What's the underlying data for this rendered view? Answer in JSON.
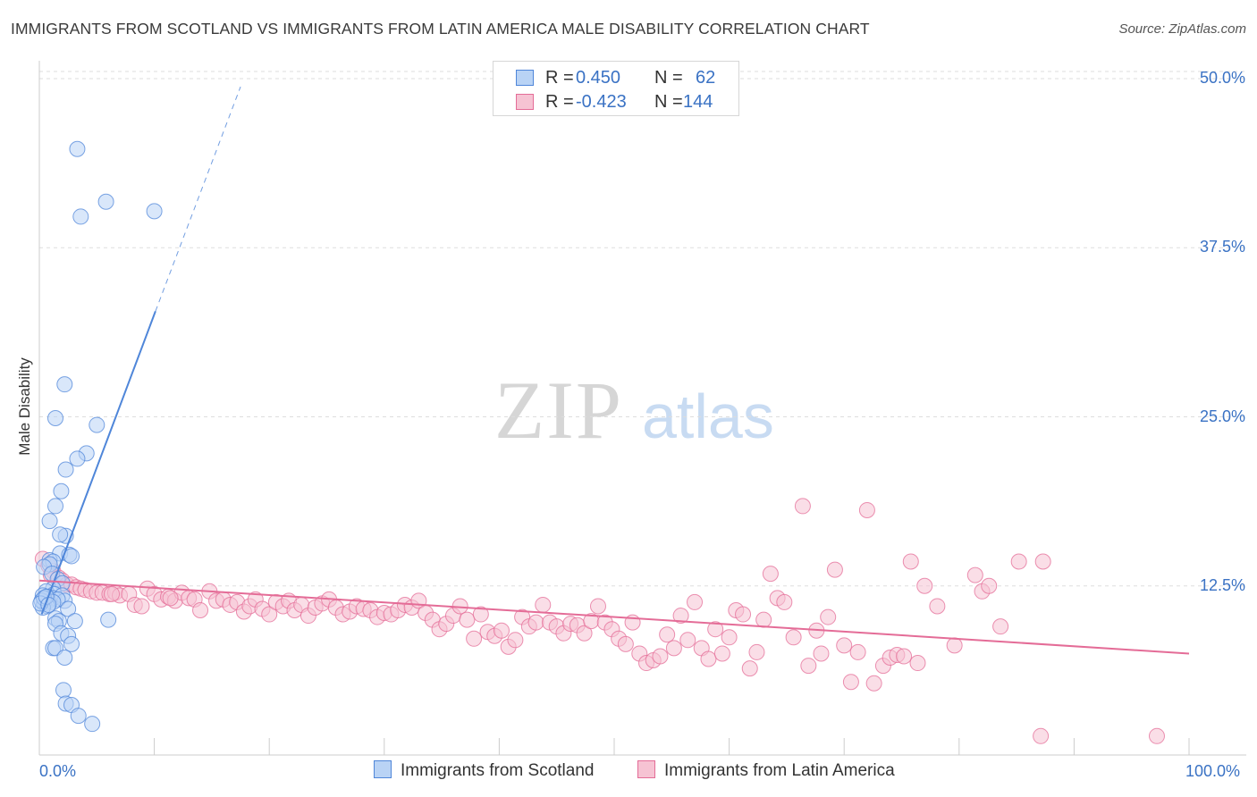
{
  "title": "IMMIGRANTS FROM SCOTLAND VS IMMIGRANTS FROM LATIN AMERICA MALE DISABILITY CORRELATION CHART",
  "source": "Source: ZipAtlas.com",
  "watermark": {
    "zip": "ZIP",
    "atlas": "atlas"
  },
  "colors": {
    "blue": "#4f86d9",
    "blue_fill": "#b9d3f5",
    "pink": "#e46c97",
    "pink_fill": "#f6c3d3",
    "tick_text": "#3a72c4",
    "grid": "#dddddd"
  },
  "legend_top": {
    "rows": [
      {
        "r_label": "R =",
        "r_value": "0.450",
        "n_label": "N =",
        "n_value": "62",
        "color": "blue"
      },
      {
        "r_label": "R =",
        "r_value": "-0.423",
        "n_label": "N =",
        "n_value": "144",
        "color": "pink"
      }
    ]
  },
  "legend_bottom": {
    "items": [
      {
        "label": "Immigrants from Scotland",
        "color": "blue"
      },
      {
        "label": "Immigrants from Latin America",
        "color": "pink"
      }
    ]
  },
  "chart_data": {
    "type": "scatter",
    "title": "IMMIGRANTS FROM SCOTLAND VS IMMIGRANTS FROM LATIN AMERICA MALE DISABILITY CORRELATION CHART",
    "xlabel": "",
    "ylabel": "Male Disability",
    "xlim": [
      0,
      100
    ],
    "ylim": [
      0,
      50
    ],
    "x_tick_labels": [
      "0.0%",
      "100.0%"
    ],
    "y_ticks": [
      12.5,
      25.0,
      37.5,
      50.0
    ],
    "y_tick_labels": [
      "12.5%",
      "25.0%",
      "37.5%",
      "50.0%"
    ],
    "grid": "horizontal dashed",
    "legend_position": "top-center and bottom",
    "series": [
      {
        "name": "Immigrants from Scotland",
        "color": "blue",
        "R": 0.45,
        "N": 62,
        "trend": {
          "x0": 0.2,
          "y0": 10.4,
          "x1": 10.1,
          "y1": 32.8,
          "dashed_to_x": 17.5,
          "dashed_to_y": 49.4
        },
        "points": [
          [
            3.3,
            44.8
          ],
          [
            5.8,
            40.9
          ],
          [
            3.6,
            39.8
          ],
          [
            10.0,
            40.2
          ],
          [
            2.2,
            27.4
          ],
          [
            1.4,
            24.9
          ],
          [
            5.0,
            24.4
          ],
          [
            4.1,
            22.3
          ],
          [
            3.3,
            21.9
          ],
          [
            2.3,
            21.1
          ],
          [
            1.9,
            19.5
          ],
          [
            1.4,
            18.4
          ],
          [
            0.9,
            17.3
          ],
          [
            2.3,
            16.2
          ],
          [
            1.8,
            16.3
          ],
          [
            1.8,
            14.9
          ],
          [
            2.6,
            14.8
          ],
          [
            2.8,
            14.7
          ],
          [
            0.9,
            14.4
          ],
          [
            1.2,
            14.3
          ],
          [
            0.9,
            14.1
          ],
          [
            0.4,
            13.9
          ],
          [
            1.1,
            13.4
          ],
          [
            1.6,
            13.0
          ],
          [
            2.0,
            12.7
          ],
          [
            1.2,
            12.3
          ],
          [
            0.6,
            12.1
          ],
          [
            1.3,
            11.9
          ],
          [
            0.7,
            11.7
          ],
          [
            1.2,
            11.6
          ],
          [
            0.5,
            11.5
          ],
          [
            0.8,
            11.4
          ],
          [
            2.0,
            11.8
          ],
          [
            2.2,
            11.4
          ],
          [
            0.4,
            11.2
          ],
          [
            1.6,
            11.5
          ],
          [
            1.2,
            11.3
          ],
          [
            0.7,
            11.0
          ],
          [
            2.5,
            10.8
          ],
          [
            0.3,
            10.9
          ],
          [
            1.4,
            10.1
          ],
          [
            1.7,
            9.9
          ],
          [
            1.4,
            9.7
          ],
          [
            3.1,
            9.9
          ],
          [
            6.0,
            10.0
          ],
          [
            1.9,
            9.0
          ],
          [
            2.5,
            8.8
          ],
          [
            2.8,
            8.2
          ],
          [
            1.2,
            7.9
          ],
          [
            1.4,
            7.9
          ],
          [
            2.2,
            7.2
          ],
          [
            2.1,
            4.8
          ],
          [
            2.3,
            3.8
          ],
          [
            2.8,
            3.7
          ],
          [
            3.4,
            2.9
          ],
          [
            4.6,
            2.3
          ],
          [
            0.3,
            11.8
          ],
          [
            0.2,
            11.4
          ],
          [
            0.4,
            11.6
          ],
          [
            0.1,
            11.2
          ],
          [
            0.6,
            11.7
          ],
          [
            0.8,
            11.1
          ]
        ]
      },
      {
        "name": "Immigrants from Latin America",
        "color": "pink",
        "R": -0.423,
        "N": 144,
        "trend": {
          "x0": 0.0,
          "y0": 12.9,
          "x1": 100.0,
          "y1": 7.5
        },
        "points": [
          [
            0.3,
            14.5
          ],
          [
            0.8,
            14.0
          ],
          [
            1.2,
            13.6
          ],
          [
            1.0,
            13.3
          ],
          [
            1.7,
            13.1
          ],
          [
            2.0,
            12.9
          ],
          [
            2.4,
            12.6
          ],
          [
            2.8,
            12.6
          ],
          [
            3.2,
            12.4
          ],
          [
            3.6,
            12.3
          ],
          [
            4.0,
            12.2
          ],
          [
            4.5,
            12.1
          ],
          [
            5.0,
            12.0
          ],
          [
            5.5,
            12.0
          ],
          [
            6.1,
            11.9
          ],
          [
            6.6,
            12.0
          ],
          [
            7.0,
            11.8
          ],
          [
            7.8,
            11.9
          ],
          [
            8.3,
            11.1
          ],
          [
            8.9,
            11.0
          ],
          [
            9.4,
            12.3
          ],
          [
            10.0,
            11.9
          ],
          [
            10.6,
            11.5
          ],
          [
            11.2,
            11.7
          ],
          [
            11.8,
            11.4
          ],
          [
            12.4,
            12.0
          ],
          [
            13.0,
            11.6
          ],
          [
            13.5,
            11.5
          ],
          [
            14.0,
            10.7
          ],
          [
            14.8,
            12.1
          ],
          [
            15.4,
            11.4
          ],
          [
            16.0,
            11.5
          ],
          [
            16.6,
            11.1
          ],
          [
            17.2,
            11.3
          ],
          [
            17.8,
            10.6
          ],
          [
            18.3,
            11.0
          ],
          [
            18.8,
            11.5
          ],
          [
            19.4,
            10.8
          ],
          [
            20.0,
            10.4
          ],
          [
            20.6,
            11.3
          ],
          [
            21.2,
            11.0
          ],
          [
            21.7,
            11.4
          ],
          [
            22.2,
            10.7
          ],
          [
            22.8,
            11.1
          ],
          [
            23.4,
            10.3
          ],
          [
            24.0,
            10.9
          ],
          [
            24.6,
            11.2
          ],
          [
            25.2,
            11.5
          ],
          [
            25.8,
            10.9
          ],
          [
            26.4,
            10.4
          ],
          [
            27.0,
            10.6
          ],
          [
            27.6,
            11.0
          ],
          [
            28.2,
            10.8
          ],
          [
            28.8,
            10.7
          ],
          [
            29.4,
            10.2
          ],
          [
            30.0,
            10.5
          ],
          [
            30.6,
            10.4
          ],
          [
            31.2,
            10.7
          ],
          [
            31.8,
            11.1
          ],
          [
            32.4,
            10.9
          ],
          [
            33.0,
            11.4
          ],
          [
            33.6,
            10.5
          ],
          [
            34.2,
            10.0
          ],
          [
            34.8,
            9.3
          ],
          [
            35.4,
            9.7
          ],
          [
            36.0,
            10.3
          ],
          [
            36.6,
            11.0
          ],
          [
            37.2,
            10.0
          ],
          [
            37.8,
            8.6
          ],
          [
            38.4,
            10.4
          ],
          [
            39.0,
            9.1
          ],
          [
            39.6,
            8.8
          ],
          [
            40.2,
            9.2
          ],
          [
            40.8,
            8.0
          ],
          [
            41.4,
            8.5
          ],
          [
            42.0,
            10.2
          ],
          [
            42.6,
            9.5
          ],
          [
            43.2,
            9.8
          ],
          [
            43.8,
            11.1
          ],
          [
            44.4,
            9.8
          ],
          [
            45.0,
            9.5
          ],
          [
            45.6,
            9.0
          ],
          [
            46.2,
            9.7
          ],
          [
            46.8,
            9.6
          ],
          [
            47.4,
            9.0
          ],
          [
            48.0,
            9.9
          ],
          [
            48.6,
            11.0
          ],
          [
            49.2,
            9.8
          ],
          [
            49.8,
            9.3
          ],
          [
            50.4,
            8.6
          ],
          [
            51.0,
            8.2
          ],
          [
            51.6,
            9.8
          ],
          [
            52.2,
            7.5
          ],
          [
            52.8,
            6.8
          ],
          [
            53.4,
            7.0
          ],
          [
            54.0,
            7.3
          ],
          [
            54.6,
            8.9
          ],
          [
            55.2,
            7.9
          ],
          [
            55.8,
            10.3
          ],
          [
            56.4,
            8.5
          ],
          [
            57.0,
            11.3
          ],
          [
            57.6,
            7.9
          ],
          [
            58.2,
            7.1
          ],
          [
            58.8,
            9.3
          ],
          [
            59.4,
            7.5
          ],
          [
            60.0,
            8.7
          ],
          [
            60.6,
            10.7
          ],
          [
            61.2,
            10.4
          ],
          [
            61.8,
            6.4
          ],
          [
            62.4,
            7.6
          ],
          [
            63.0,
            10.0
          ],
          [
            63.6,
            13.4
          ],
          [
            64.2,
            11.6
          ],
          [
            64.8,
            11.3
          ],
          [
            65.6,
            8.7
          ],
          [
            66.4,
            18.4
          ],
          [
            66.9,
            6.6
          ],
          [
            67.6,
            9.2
          ],
          [
            68.0,
            7.5
          ],
          [
            68.6,
            10.2
          ],
          [
            69.2,
            13.7
          ],
          [
            70.0,
            8.1
          ],
          [
            70.6,
            5.4
          ],
          [
            71.2,
            7.6
          ],
          [
            72.0,
            18.1
          ],
          [
            72.6,
            5.3
          ],
          [
            73.4,
            6.6
          ],
          [
            74.0,
            7.2
          ],
          [
            74.6,
            7.4
          ],
          [
            75.2,
            7.3
          ],
          [
            75.8,
            14.3
          ],
          [
            76.4,
            6.8
          ],
          [
            77.0,
            12.5
          ],
          [
            78.1,
            11.0
          ],
          [
            79.6,
            8.1
          ],
          [
            81.4,
            13.3
          ],
          [
            82.0,
            12.1
          ],
          [
            82.6,
            12.5
          ],
          [
            83.6,
            9.5
          ],
          [
            85.2,
            14.3
          ],
          [
            87.3,
            14.3
          ],
          [
            87.1,
            1.4
          ],
          [
            97.2,
            1.4
          ],
          [
            6.3,
            11.9
          ],
          [
            11.4,
            11.6
          ]
        ]
      }
    ]
  }
}
